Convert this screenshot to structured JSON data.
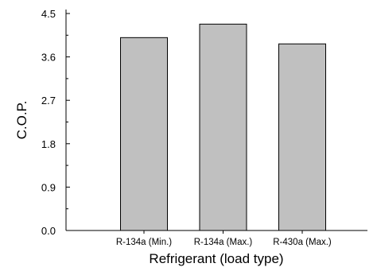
{
  "chart_data": {
    "type": "bar",
    "categories": [
      "R-134a (Min.)",
      "R-134a (Max.)",
      "R-430a (Max.)"
    ],
    "values": [
      4.0,
      4.28,
      3.87
    ],
    "title": "",
    "xlabel": "Refrigerant (load type)",
    "ylabel": "C.O.P.",
    "ylim": [
      0,
      4.5
    ],
    "yticks": [
      "0.0",
      "0.9",
      "1.8",
      "2.7",
      "3.6",
      "4.5"
    ],
    "grid": false,
    "bar_color": "#c0c0c0",
    "bar_edge_color": "#000000"
  }
}
